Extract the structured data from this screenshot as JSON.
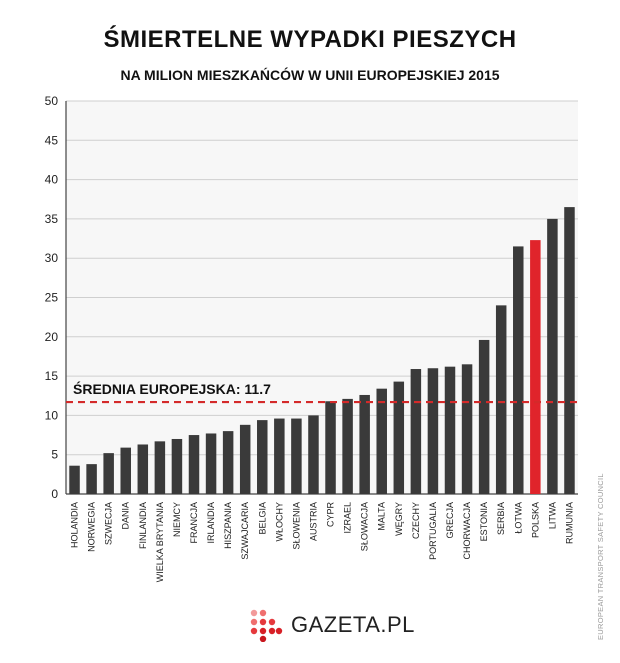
{
  "title": "ŚMIERTELNE WYPADKI PIESZYCH",
  "subtitle": "NA MILION MIESZKAŃCÓW W UNII EUROPEJSKIEJ 2015",
  "source": "EUROPEAN TRANSPORT SAFETY COUNCIL",
  "logo_text": "GAZETA.PL",
  "colors": {
    "bar": "#3a3a3a",
    "highlight": "#e0242b",
    "average_line": "#d42a2a",
    "plot_bg": "#f7f7f7",
    "grid": "#cfcfcf"
  },
  "chart_data": {
    "type": "bar",
    "title": "ŚMIERTELNE WYPADKI PIESZYCH",
    "subtitle": "NA MILION MIESZKAŃCÓW W UNII EUROPEJSKIEJ 2015",
    "categories": [
      "HOLANDIA",
      "NORWEGIA",
      "SZWECJA",
      "DANIA",
      "FINLANDIA",
      "WIELKA BRYTANIA",
      "NIEMCY",
      "FRANCJA",
      "IRLANDIA",
      "HISZPANIA",
      "SZWAJCARIA",
      "BELGIA",
      "WŁOCHY",
      "SŁOWENIA",
      "AUSTRIA",
      "CYPR",
      "IZRAEL",
      "SŁOWACJA",
      "MALTA",
      "WĘGRY",
      "CZECHY",
      "PORTUGALIA",
      "GRECJA",
      "CHORWACJA",
      "ESTONIA",
      "SERBIA",
      "ŁOTWA",
      "POLSKA",
      "LITWA",
      "RUMUNIA"
    ],
    "values": [
      3.6,
      3.8,
      5.2,
      5.9,
      6.3,
      6.7,
      7.0,
      7.5,
      7.7,
      8.0,
      8.8,
      9.4,
      9.6,
      9.6,
      10.0,
      11.8,
      12.1,
      12.6,
      13.4,
      14.3,
      15.9,
      16.0,
      16.2,
      16.5,
      19.6,
      24.0,
      31.5,
      32.3,
      35.0,
      36.5
    ],
    "highlight": "POLSKA",
    "ylim": [
      0,
      50
    ],
    "yticks": [
      0,
      5,
      10,
      15,
      20,
      25,
      30,
      35,
      40,
      45,
      50
    ],
    "average": {
      "label": "ŚREDNIA EUROPEJSKA: 11.7",
      "value": 11.7
    },
    "grid": true,
    "xlabel": "",
    "ylabel": ""
  }
}
